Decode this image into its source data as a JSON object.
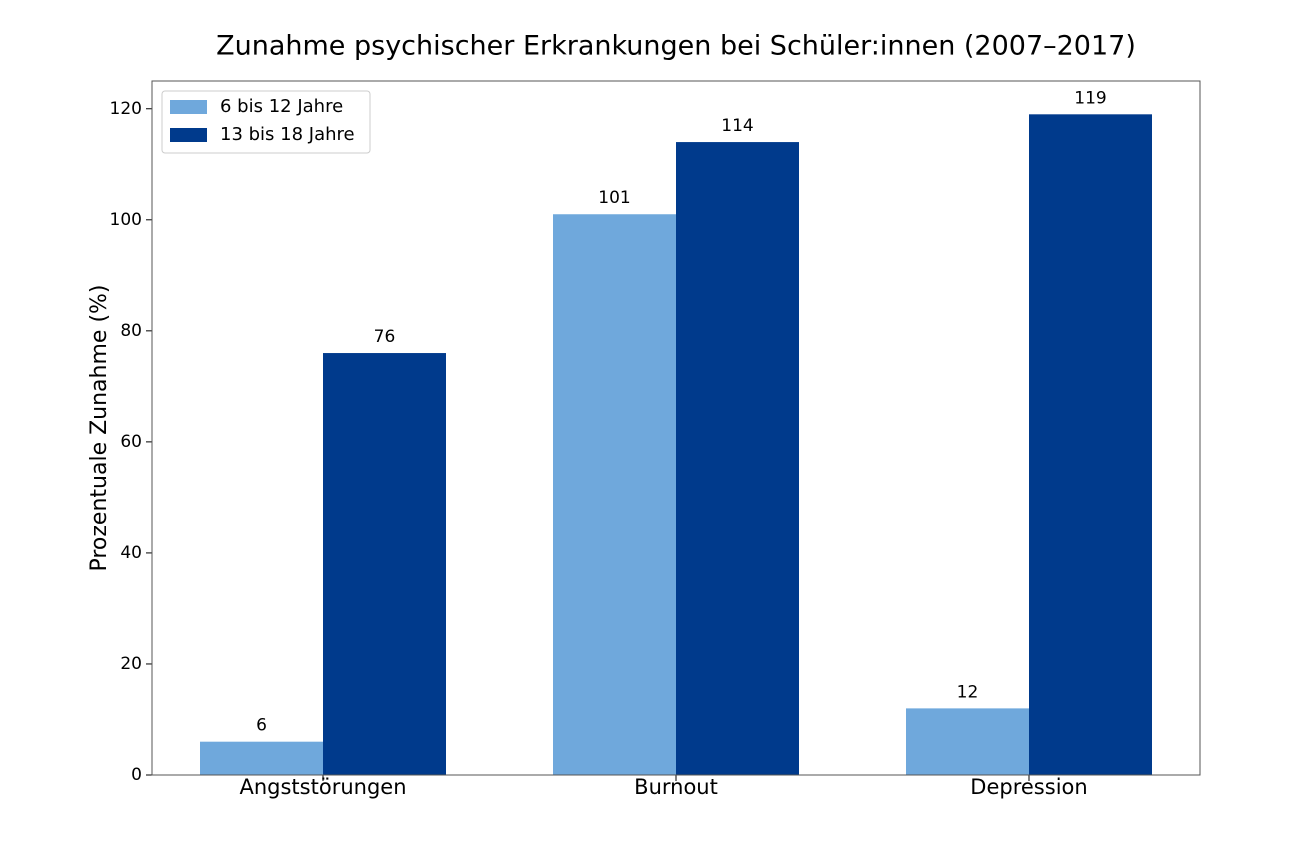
{
  "chart_data": {
    "type": "bar",
    "title": "Zunahme psychischer Erkrankungen bei Schüler:innen (2007–2017)",
    "y_label": "Prozentuale Zunahme (%)",
    "categories": [
      "Angststörungen",
      "Burnout",
      "Depression"
    ],
    "series": [
      {
        "name": "6 bis 12 Jahre",
        "color": "#6fa8dc",
        "values": [
          6,
          101,
          12
        ]
      },
      {
        "name": "13 bis 18 Jahre",
        "color": "#003a8c",
        "values": [
          76,
          114,
          119
        ]
      }
    ],
    "ylim": [
      0,
      125
    ],
    "yticks": [
      0,
      20,
      40,
      60,
      80,
      100,
      120
    ],
    "grid": false,
    "legend": "upper left",
    "show_value_labels": true
  }
}
